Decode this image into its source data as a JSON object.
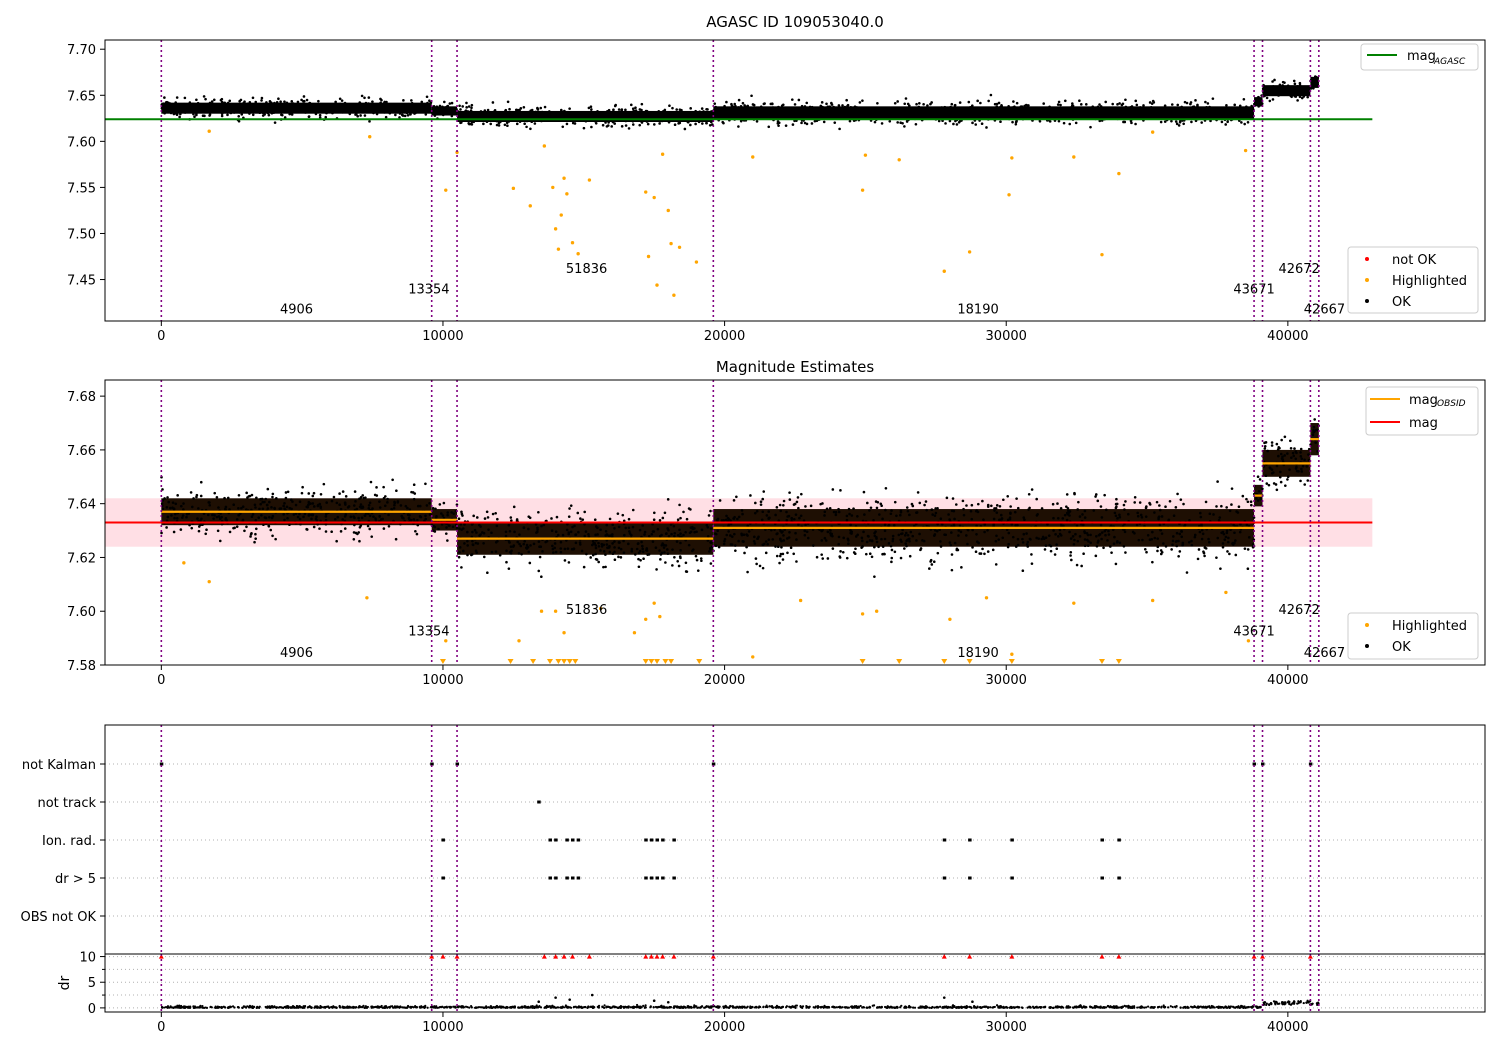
{
  "chart_data": [
    {
      "type": "scatter",
      "title": "AGASC ID 109053040.0",
      "xlabel": "",
      "ylabel": "",
      "xlim": [
        -2000,
        47000
      ],
      "ylim": [
        7.405,
        7.71
      ],
      "xticks": [
        0,
        10000,
        20000,
        30000,
        40000
      ],
      "yticks": [
        7.45,
        7.5,
        7.55,
        7.6,
        7.65,
        7.7
      ],
      "ytick_labels": [
        "7.45",
        "7.50",
        "7.55",
        "7.60",
        "7.65",
        "7.70"
      ],
      "grid": false,
      "horizontal_lines": [
        {
          "name": "mag_AGASC",
          "y": 7.624,
          "x_range": [
            -2000,
            43000
          ],
          "color": "#008000"
        }
      ],
      "segments": [
        {
          "x_start": 0,
          "x_end": 9600,
          "mag": 7.636,
          "spread": 0.006
        },
        {
          "x_start": 9600,
          "x_end": 10500,
          "mag": 7.633,
          "spread": 0.005
        },
        {
          "x_start": 10500,
          "x_end": 19600,
          "mag": 7.627,
          "spread": 0.006
        },
        {
          "x_start": 19600,
          "x_end": 38800,
          "mag": 7.631,
          "spread": 0.007
        },
        {
          "x_start": 38800,
          "x_end": 39100,
          "mag": 7.643,
          "spread": 0.005
        },
        {
          "x_start": 39100,
          "x_end": 40800,
          "mag": 7.655,
          "spread": 0.006
        },
        {
          "x_start": 40800,
          "x_end": 41100,
          "mag": 7.664,
          "spread": 0.006
        }
      ],
      "highlighted_outliers": [
        [
          1700,
          7.611
        ],
        [
          7400,
          7.605
        ],
        [
          10100,
          7.547
        ],
        [
          10500,
          7.588
        ],
        [
          12500,
          7.549
        ],
        [
          13100,
          7.53
        ],
        [
          13600,
          7.595
        ],
        [
          13900,
          7.55
        ],
        [
          14000,
          7.505
        ],
        [
          14100,
          7.483
        ],
        [
          14200,
          7.52
        ],
        [
          14300,
          7.56
        ],
        [
          14400,
          7.543
        ],
        [
          14600,
          7.49
        ],
        [
          14800,
          7.478
        ],
        [
          15200,
          7.558
        ],
        [
          17200,
          7.545
        ],
        [
          17300,
          7.475
        ],
        [
          17500,
          7.539
        ],
        [
          17600,
          7.444
        ],
        [
          17800,
          7.586
        ],
        [
          18000,
          7.525
        ],
        [
          18100,
          7.489
        ],
        [
          18200,
          7.433
        ],
        [
          18400,
          7.485
        ],
        [
          19000,
          7.469
        ],
        [
          21000,
          7.583
        ],
        [
          24900,
          7.547
        ],
        [
          25000,
          7.585
        ],
        [
          26200,
          7.58
        ],
        [
          27800,
          7.459
        ],
        [
          28700,
          7.48
        ],
        [
          30100,
          7.542
        ],
        [
          30200,
          7.582
        ],
        [
          32400,
          7.583
        ],
        [
          33400,
          7.477
        ],
        [
          34000,
          7.565
        ],
        [
          35200,
          7.61
        ],
        [
          38500,
          7.59
        ]
      ],
      "observation_lines_x": [
        0,
        9600,
        10500,
        19600,
        38800,
        39100,
        40800,
        41100
      ],
      "obsid_labels": [
        {
          "text": "4906",
          "x": 4800,
          "y": 7.413
        },
        {
          "text": "13354",
          "x": 9500,
          "y": 7.435
        },
        {
          "text": "51836",
          "x": 15100,
          "y": 7.457
        },
        {
          "text": "18190",
          "x": 29000,
          "y": 7.413
        },
        {
          "text": "43671",
          "x": 38800,
          "y": 7.435
        },
        {
          "text": "42672",
          "x": 40400,
          "y": 7.457
        },
        {
          "text": "42667",
          "x": 41300,
          "y": 7.413
        }
      ],
      "legends": [
        {
          "placement": "upper right",
          "entries": [
            {
              "label": "mag",
              "subscript": "AGASC",
              "kind": "line",
              "color": "#008000"
            }
          ]
        },
        {
          "placement": "lower right",
          "entries": [
            {
              "label": "not OK",
              "kind": "point",
              "color": "#ff0000"
            },
            {
              "label": "Highlighted",
              "kind": "point",
              "color": "#ffa500"
            },
            {
              "label": "OK",
              "kind": "point",
              "color": "#000000"
            }
          ]
        }
      ]
    },
    {
      "type": "scatter",
      "title": "Magnitude Estimates",
      "xlabel": "",
      "ylabel": "",
      "xlim": [
        -2000,
        47000
      ],
      "ylim": [
        7.58,
        7.686
      ],
      "xticks": [
        0,
        10000,
        20000,
        30000,
        40000
      ],
      "yticks": [
        7.58,
        7.6,
        7.62,
        7.64,
        7.66,
        7.68
      ],
      "ytick_labels": [
        "7.58",
        "7.60",
        "7.62",
        "7.64",
        "7.66",
        "7.68"
      ],
      "grid": false,
      "horizontal_lines": [
        {
          "name": "mag",
          "y": 7.633,
          "x_range": [
            -2000,
            43000
          ],
          "color": "#ff0000",
          "band": [
            7.624,
            7.642
          ]
        }
      ],
      "segments": [
        {
          "x_start": 0,
          "x_end": 9600,
          "mag": 7.637,
          "spread": 0.005
        },
        {
          "x_start": 9600,
          "x_end": 10500,
          "mag": 7.634,
          "spread": 0.004
        },
        {
          "x_start": 10500,
          "x_end": 19600,
          "mag": 7.627,
          "spread": 0.006
        },
        {
          "x_start": 19600,
          "x_end": 38800,
          "mag": 7.631,
          "spread": 0.007
        },
        {
          "x_start": 38800,
          "x_end": 39100,
          "mag": 7.643,
          "spread": 0.004
        },
        {
          "x_start": 39100,
          "x_end": 40800,
          "mag": 7.655,
          "spread": 0.005
        },
        {
          "x_start": 40800,
          "x_end": 41100,
          "mag": 7.664,
          "spread": 0.006
        }
      ],
      "highlighted_outliers": [
        [
          800,
          7.618
        ],
        [
          1700,
          7.611
        ],
        [
          7300,
          7.605
        ],
        [
          10100,
          7.589
        ],
        [
          12700,
          7.589
        ],
        [
          13500,
          7.6
        ],
        [
          14000,
          7.6
        ],
        [
          14300,
          7.592
        ],
        [
          15600,
          7.601
        ],
        [
          16800,
          7.592
        ],
        [
          17200,
          7.597
        ],
        [
          17500,
          7.603
        ],
        [
          17700,
          7.598
        ],
        [
          21000,
          7.583
        ],
        [
          22700,
          7.604
        ],
        [
          24900,
          7.599
        ],
        [
          25400,
          7.6
        ],
        [
          28000,
          7.597
        ],
        [
          29300,
          7.605
        ],
        [
          30200,
          7.584
        ],
        [
          32400,
          7.603
        ],
        [
          35200,
          7.604
        ],
        [
          37800,
          7.607
        ],
        [
          38600,
          7.589
        ]
      ],
      "below_range_x": [
        10000,
        12400,
        13200,
        13800,
        14100,
        14300,
        14500,
        14700,
        17200,
        17400,
        17600,
        17900,
        18100,
        19100,
        24900,
        26200,
        27800,
        28700,
        30200,
        33400,
        34000
      ],
      "observation_lines_x": [
        0,
        9600,
        10500,
        19600,
        38800,
        39100,
        40800,
        41100
      ],
      "obsid_labels": [
        {
          "text": "4906",
          "x": 4800,
          "y": 7.583
        },
        {
          "text": "13354",
          "x": 9500,
          "y": 7.591
        },
        {
          "text": "51836",
          "x": 15100,
          "y": 7.599
        },
        {
          "text": "18190",
          "x": 29000,
          "y": 7.583
        },
        {
          "text": "43671",
          "x": 38800,
          "y": 7.591
        },
        {
          "text": "42672",
          "x": 40400,
          "y": 7.599
        },
        {
          "text": "42667",
          "x": 41300,
          "y": 7.583
        }
      ],
      "legends": [
        {
          "placement": "upper right",
          "entries": [
            {
              "label": "mag",
              "subscript": "OBSID",
              "kind": "line",
              "color": "#ffa500"
            },
            {
              "label": "mag",
              "kind": "line",
              "color": "#ff0000"
            }
          ]
        },
        {
          "placement": "lower right",
          "entries": [
            {
              "label": "Highlighted",
              "kind": "point",
              "color": "#ffa500"
            },
            {
              "label": "OK",
              "kind": "point",
              "color": "#000000"
            }
          ]
        }
      ]
    },
    {
      "type": "scatter",
      "title": "",
      "xlabel": "",
      "xlim": [
        -2000,
        47000
      ],
      "xticks": [
        0,
        10000,
        20000,
        30000,
        40000
      ],
      "grid": true,
      "flag_rows": [
        {
          "label": "not Kalman",
          "x": [
            0,
            9600,
            10500,
            19600,
            38800,
            39100,
            40800
          ]
        },
        {
          "label": "not track",
          "x": [
            13400
          ]
        },
        {
          "label": "Ion. rad.",
          "x": [
            10000,
            13800,
            14000,
            14400,
            14600,
            14800,
            17200,
            17400,
            17600,
            17800,
            18200,
            27800,
            28700,
            30200,
            33400,
            34000
          ]
        },
        {
          "label": "dr > 5",
          "x": [
            10000,
            13800,
            14000,
            14400,
            14600,
            14800,
            17200,
            17400,
            17600,
            17800,
            18200,
            27800,
            28700,
            30200,
            33400,
            34000
          ]
        },
        {
          "label": "OBS not OK",
          "x": []
        }
      ],
      "dr_panel": {
        "ylabel": "dr",
        "yticks": [
          0,
          5,
          10
        ],
        "ylim": [
          -0.8,
          10.5
        ],
        "capped_x": [
          0,
          9600,
          10000,
          10500,
          13600,
          14000,
          14300,
          14600,
          15200,
          17200,
          17400,
          17600,
          17800,
          18200,
          19600,
          27800,
          28700,
          30200,
          33400,
          34000,
          38800,
          39100,
          40800
        ],
        "elevated": [
          [
            13400,
            1.2
          ],
          [
            14000,
            2.0
          ],
          [
            14500,
            1.6
          ],
          [
            15300,
            2.5
          ],
          [
            17500,
            1.4
          ],
          [
            18000,
            1.1
          ],
          [
            27800,
            2.0
          ],
          [
            28800,
            1.2
          ],
          [
            40200,
            1.0
          ]
        ]
      },
      "observation_lines_x": [
        0,
        9600,
        10500,
        19600,
        38800,
        39100,
        40800,
        41100
      ]
    }
  ]
}
